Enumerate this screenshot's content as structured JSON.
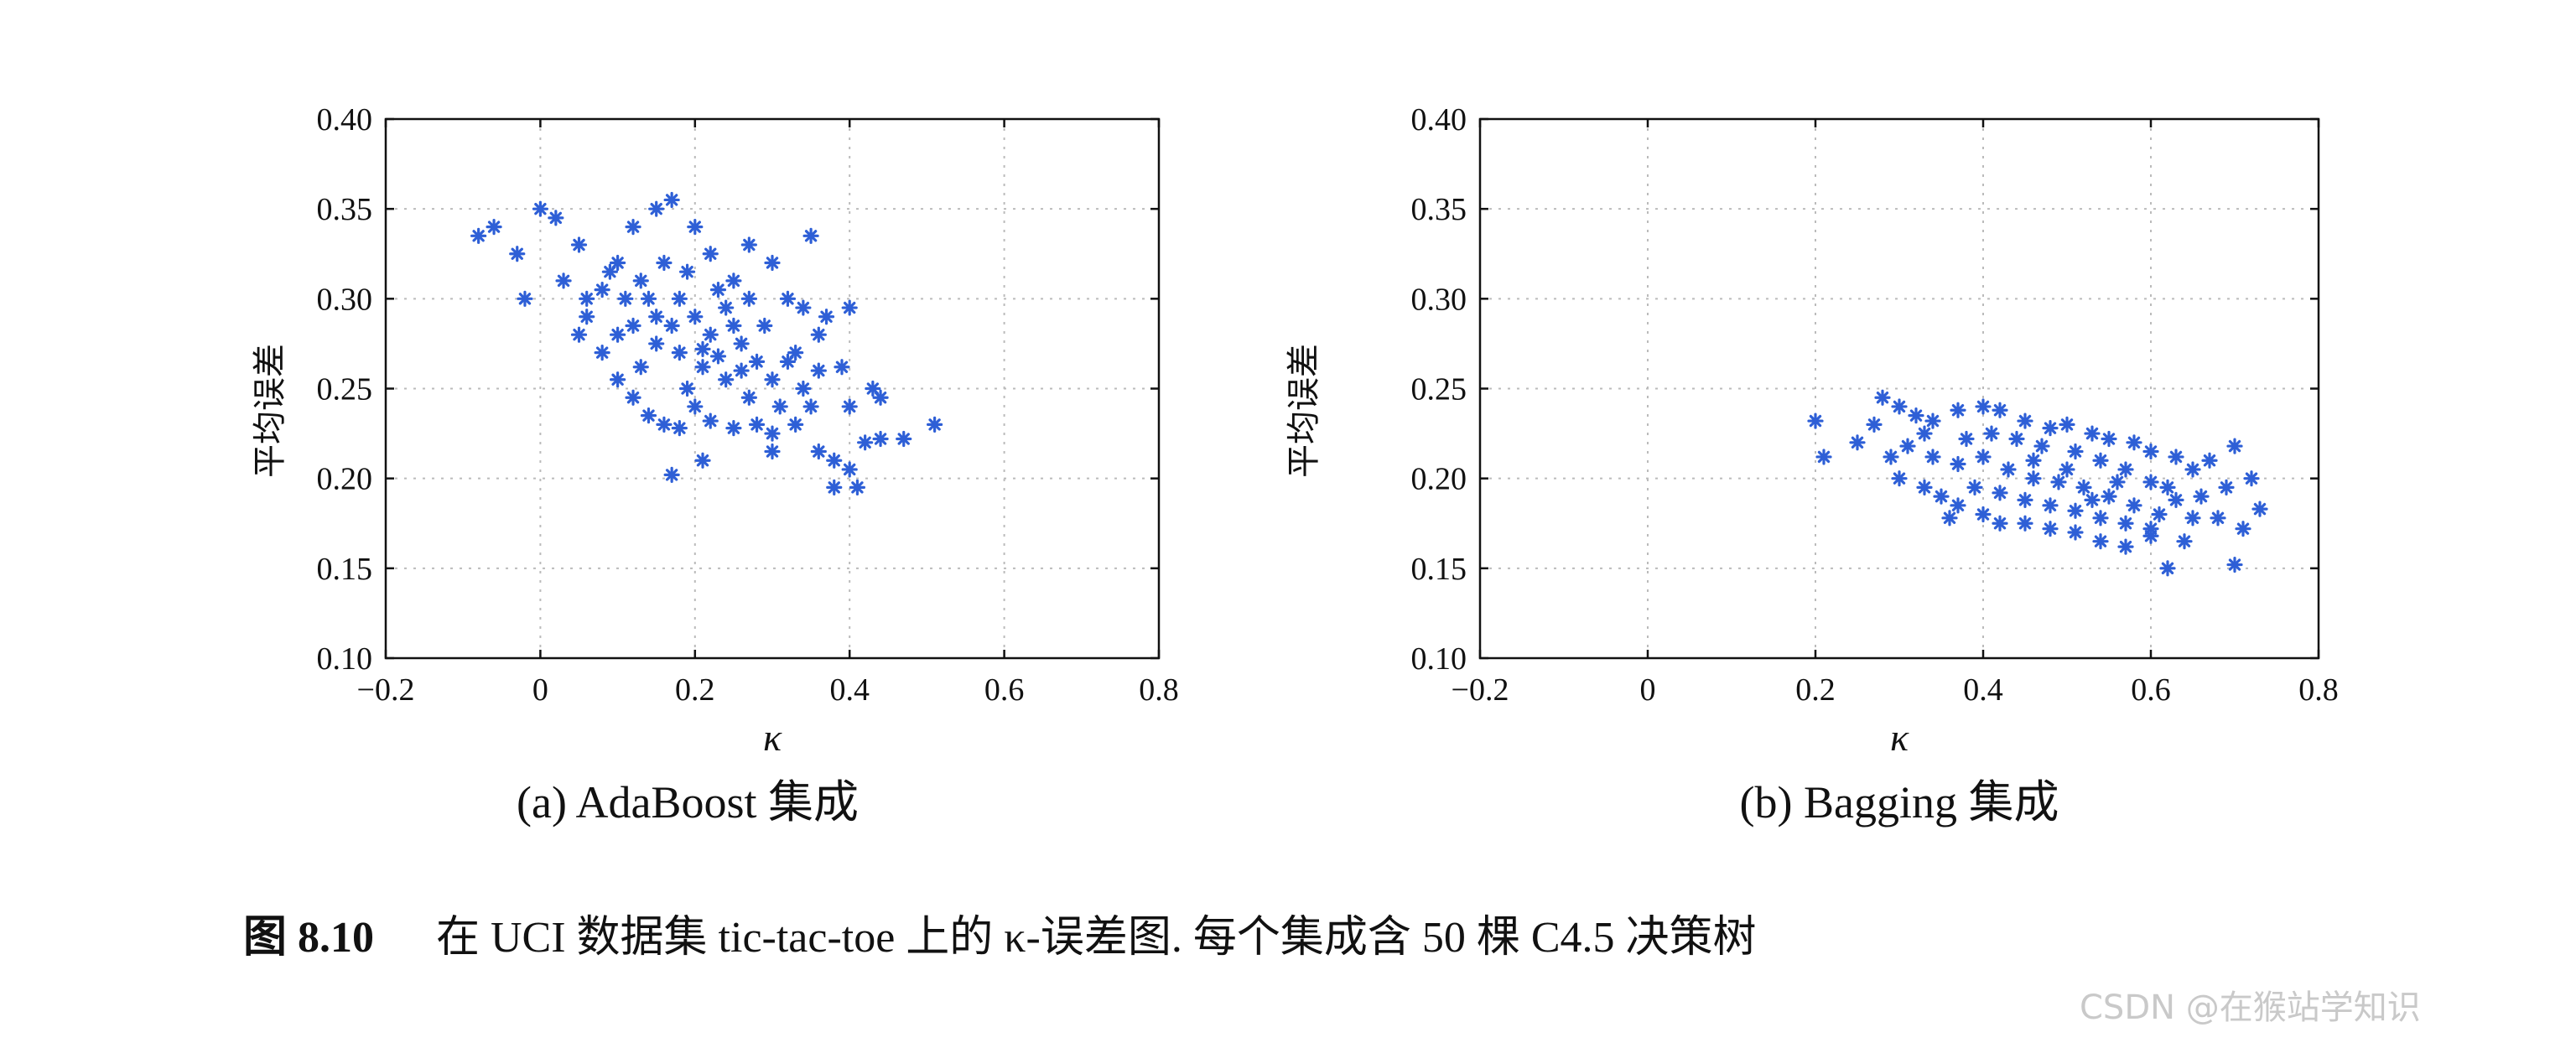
{
  "chart_data": [
    {
      "type": "scatter",
      "subtitle": "(a) AdaBoost 集成",
      "xlabel": "κ",
      "ylabel": "平均误差",
      "xlim": [
        -0.2,
        0.8
      ],
      "ylim": [
        0.1,
        0.4
      ],
      "xticks": [
        "−0.2",
        "0",
        "0.2",
        "0.4",
        "0.6",
        "0.8"
      ],
      "yticks": [
        "0.10",
        "0.15",
        "0.20",
        "0.25",
        "0.30",
        "0.35",
        "0.40"
      ],
      "grid": true,
      "marker": "asterisk",
      "color": "#2e5fd6",
      "points": [
        [
          -0.08,
          0.335
        ],
        [
          -0.06,
          0.34
        ],
        [
          -0.03,
          0.325
        ],
        [
          -0.02,
          0.3
        ],
        [
          0.0,
          0.35
        ],
        [
          0.02,
          0.345
        ],
        [
          0.05,
          0.33
        ],
        [
          0.03,
          0.31
        ],
        [
          0.06,
          0.29
        ],
        [
          0.08,
          0.305
        ],
        [
          0.1,
          0.32
        ],
        [
          0.12,
          0.34
        ],
        [
          0.15,
          0.35
        ],
        [
          0.17,
          0.355
        ],
        [
          0.2,
          0.34
        ],
        [
          0.22,
          0.325
        ],
        [
          0.25,
          0.31
        ],
        [
          0.27,
          0.33
        ],
        [
          0.3,
          0.32
        ],
        [
          0.32,
          0.3
        ],
        [
          0.34,
          0.295
        ],
        [
          0.37,
          0.29
        ],
        [
          0.4,
          0.295
        ],
        [
          0.35,
          0.335
        ],
        [
          0.08,
          0.27
        ],
        [
          0.1,
          0.255
        ],
        [
          0.12,
          0.245
        ],
        [
          0.14,
          0.235
        ],
        [
          0.16,
          0.23
        ],
        [
          0.18,
          0.228
        ],
        [
          0.2,
          0.24
        ],
        [
          0.22,
          0.232
        ],
        [
          0.25,
          0.228
        ],
        [
          0.28,
          0.23
        ],
        [
          0.3,
          0.225
        ],
        [
          0.33,
          0.23
        ],
        [
          0.36,
          0.215
        ],
        [
          0.38,
          0.21
        ],
        [
          0.4,
          0.205
        ],
        [
          0.38,
          0.195
        ],
        [
          0.41,
          0.195
        ],
        [
          0.17,
          0.202
        ],
        [
          0.21,
          0.21
        ],
        [
          0.3,
          0.215
        ],
        [
          0.35,
          0.24
        ],
        [
          0.4,
          0.24
        ],
        [
          0.43,
          0.25
        ],
        [
          0.44,
          0.245
        ],
        [
          0.42,
          0.22
        ],
        [
          0.44,
          0.222
        ],
        [
          0.47,
          0.222
        ],
        [
          0.51,
          0.23
        ],
        [
          0.34,
          0.25
        ],
        [
          0.36,
          0.26
        ],
        [
          0.39,
          0.262
        ],
        [
          0.33,
          0.27
        ],
        [
          0.36,
          0.28
        ],
        [
          0.05,
          0.28
        ],
        [
          0.06,
          0.3
        ],
        [
          0.09,
          0.315
        ],
        [
          0.11,
          0.3
        ],
        [
          0.13,
          0.31
        ],
        [
          0.15,
          0.29
        ],
        [
          0.18,
          0.3
        ],
        [
          0.2,
          0.29
        ],
        [
          0.22,
          0.28
        ],
        [
          0.24,
          0.295
        ],
        [
          0.26,
          0.275
        ],
        [
          0.28,
          0.265
        ],
        [
          0.3,
          0.255
        ],
        [
          0.31,
          0.24
        ],
        [
          0.27,
          0.245
        ],
        [
          0.24,
          0.255
        ],
        [
          0.21,
          0.262
        ],
        [
          0.18,
          0.27
        ],
        [
          0.15,
          0.275
        ],
        [
          0.12,
          0.285
        ],
        [
          0.16,
          0.32
        ],
        [
          0.19,
          0.315
        ],
        [
          0.23,
          0.305
        ],
        [
          0.29,
          0.285
        ],
        [
          0.32,
          0.265
        ],
        [
          0.26,
          0.26
        ],
        [
          0.19,
          0.25
        ],
        [
          0.13,
          0.262
        ],
        [
          0.1,
          0.28
        ],
        [
          0.14,
          0.3
        ],
        [
          0.21,
          0.272
        ],
        [
          0.25,
          0.285
        ],
        [
          0.17,
          0.285
        ],
        [
          0.23,
          0.268
        ],
        [
          0.27,
          0.3
        ]
      ]
    },
    {
      "type": "scatter",
      "subtitle": "(b) Bagging 集成",
      "xlabel": "κ",
      "ylabel": "平均误差",
      "xlim": [
        -0.2,
        0.8
      ],
      "ylim": [
        0.1,
        0.4
      ],
      "xticks": [
        "−0.2",
        "0",
        "0.2",
        "0.4",
        "0.6",
        "0.8"
      ],
      "yticks": [
        "0.10",
        "0.15",
        "0.20",
        "0.25",
        "0.30",
        "0.35",
        "0.40"
      ],
      "grid": true,
      "marker": "asterisk",
      "color": "#2e5fd6",
      "points": [
        [
          0.2,
          0.232
        ],
        [
          0.21,
          0.212
        ],
        [
          0.25,
          0.22
        ],
        [
          0.27,
          0.23
        ],
        [
          0.28,
          0.245
        ],
        [
          0.3,
          0.24
        ],
        [
          0.32,
          0.235
        ],
        [
          0.34,
          0.232
        ],
        [
          0.37,
          0.238
        ],
        [
          0.4,
          0.24
        ],
        [
          0.42,
          0.238
        ],
        [
          0.45,
          0.232
        ],
        [
          0.48,
          0.228
        ],
        [
          0.5,
          0.23
        ],
        [
          0.53,
          0.225
        ],
        [
          0.55,
          0.222
        ],
        [
          0.58,
          0.22
        ],
        [
          0.6,
          0.215
        ],
        [
          0.63,
          0.212
        ],
        [
          0.65,
          0.205
        ],
        [
          0.67,
          0.21
        ],
        [
          0.7,
          0.218
        ],
        [
          0.72,
          0.2
        ],
        [
          0.69,
          0.195
        ],
        [
          0.66,
          0.19
        ],
        [
          0.68,
          0.178
        ],
        [
          0.71,
          0.172
        ],
        [
          0.73,
          0.183
        ],
        [
          0.7,
          0.152
        ],
        [
          0.62,
          0.15
        ],
        [
          0.64,
          0.165
        ],
        [
          0.6,
          0.168
        ],
        [
          0.57,
          0.162
        ],
        [
          0.54,
          0.165
        ],
        [
          0.51,
          0.17
        ],
        [
          0.48,
          0.172
        ],
        [
          0.45,
          0.175
        ],
        [
          0.42,
          0.175
        ],
        [
          0.4,
          0.18
        ],
        [
          0.37,
          0.185
        ],
        [
          0.35,
          0.19
        ],
        [
          0.33,
          0.195
        ],
        [
          0.3,
          0.2
        ],
        [
          0.29,
          0.212
        ],
        [
          0.31,
          0.218
        ],
        [
          0.34,
          0.212
        ],
        [
          0.37,
          0.208
        ],
        [
          0.4,
          0.212
        ],
        [
          0.43,
          0.205
        ],
        [
          0.46,
          0.2
        ],
        [
          0.49,
          0.198
        ],
        [
          0.52,
          0.195
        ],
        [
          0.55,
          0.19
        ],
        [
          0.58,
          0.185
        ],
        [
          0.61,
          0.18
        ],
        [
          0.63,
          0.188
        ],
        [
          0.6,
          0.198
        ],
        [
          0.57,
          0.205
        ],
        [
          0.54,
          0.21
        ],
        [
          0.51,
          0.215
        ],
        [
          0.47,
          0.218
        ],
        [
          0.44,
          0.222
        ],
        [
          0.41,
          0.225
        ],
        [
          0.38,
          0.222
        ],
        [
          0.36,
          0.178
        ],
        [
          0.39,
          0.195
        ],
        [
          0.42,
          0.192
        ],
        [
          0.45,
          0.188
        ],
        [
          0.48,
          0.185
        ],
        [
          0.51,
          0.182
        ],
        [
          0.54,
          0.178
        ],
        [
          0.57,
          0.175
        ],
        [
          0.6,
          0.172
        ],
        [
          0.65,
          0.178
        ],
        [
          0.33,
          0.225
        ],
        [
          0.46,
          0.21
        ],
        [
          0.5,
          0.205
        ],
        [
          0.56,
          0.198
        ],
        [
          0.62,
          0.195
        ],
        [
          0.53,
          0.188
        ]
      ]
    }
  ],
  "caption": {
    "label": "图 8.10",
    "text": "在 UCI 数据集 tic-tac-toe 上的 κ-误差图. 每个集成含 50 棵 C4.5 决策树"
  },
  "watermark": "CSDN @在猴站学知识"
}
